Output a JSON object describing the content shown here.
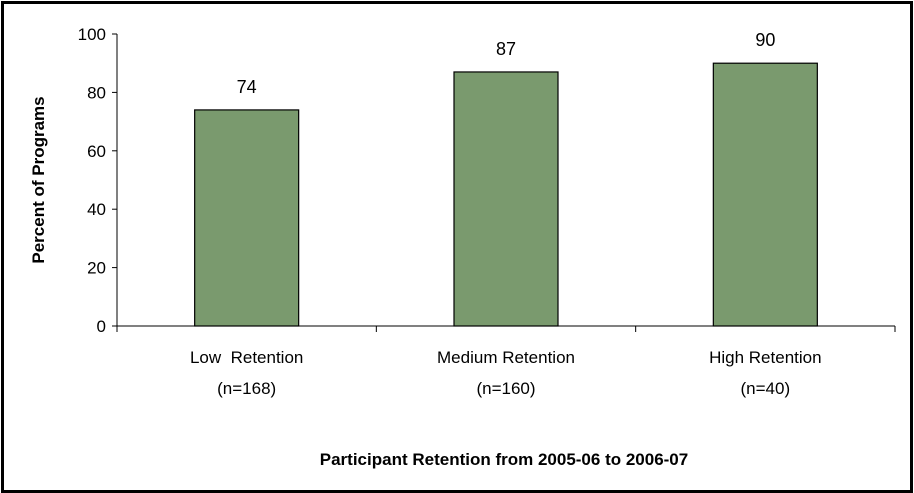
{
  "chart_data": {
    "type": "bar",
    "title": "",
    "xlabel": "Participant Retention from 2005-06 to 2006-07",
    "ylabel": "Percent of Programs",
    "ylim": [
      0,
      100
    ],
    "yticks": [
      "0",
      "20",
      "40",
      "60",
      "80",
      "100"
    ],
    "grid": false,
    "legend": "none",
    "bar_color": "#7a9a6e",
    "categories": [
      [
        "Low  Retention",
        "(n=168)"
      ],
      [
        "Medium Retention",
        "(n=160)"
      ],
      [
        "High Retention",
        "(n=40)"
      ]
    ],
    "values": [
      74,
      87,
      90
    ]
  }
}
